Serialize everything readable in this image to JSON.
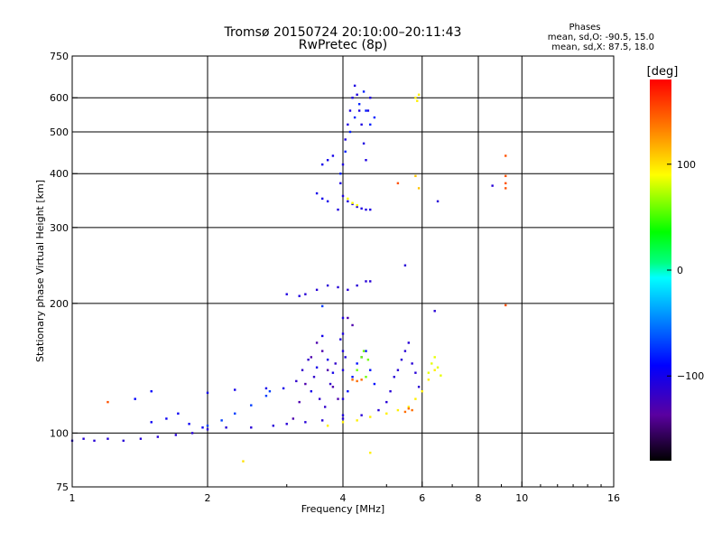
{
  "chart_data": {
    "type": "scatter",
    "title": "Tromsø 20150724 20:10:00–20:11:43",
    "subtitle": "RwPretec (8p)",
    "xlabel": "Frequency [MHz]",
    "ylabel": "Stationary phase Virtual Height [km]",
    "x_scale": "log2",
    "y_scale": "log",
    "xlim": [
      1,
      16
    ],
    "ylim": [
      75,
      750
    ],
    "xticks": [
      1,
      2,
      4,
      6,
      8,
      10,
      16
    ],
    "yticks": [
      75,
      100,
      200,
      300,
      400,
      500,
      600,
      750
    ],
    "x_grid": [
      2,
      4,
      6,
      8,
      10
    ],
    "y_grid": [
      100,
      200,
      300,
      400,
      500,
      600
    ],
    "grid": true,
    "phase_box": {
      "heading": "Phases",
      "line1": "mean, sd,O: -90.5, 15.0",
      "line2": "mean, sd,X:  87.5, 18.0"
    },
    "colorbar": {
      "label": "[deg]",
      "range": [
        -180,
        180
      ],
      "ticks": [
        100,
        0,
        -100
      ],
      "tick_labels": [
        "100",
        "0",
        "−100"
      ]
    },
    "series": [
      {
        "points": [
          [
            1.0,
            96
          ],
          [
            1.06,
            97
          ],
          [
            1.12,
            96
          ],
          [
            1.2,
            97
          ],
          [
            1.3,
            96
          ],
          [
            1.42,
            97
          ],
          [
            1.55,
            98
          ],
          [
            1.7,
            99
          ],
          [
            1.85,
            100
          ],
          [
            2.0,
            102
          ],
          [
            2.2,
            103
          ],
          [
            2.5,
            103
          ],
          [
            2.8,
            104
          ],
          [
            3.0,
            105
          ],
          [
            3.3,
            106
          ],
          [
            3.6,
            107
          ],
          [
            4.0,
            108
          ],
          [
            4.4,
            110
          ],
          [
            4.8,
            113
          ]
        ],
        "phase": -110
      },
      {
        "points": [
          [
            2.0,
            104
          ],
          [
            2.15,
            107
          ],
          [
            2.3,
            111
          ],
          [
            2.5,
            116
          ],
          [
            2.7,
            122
          ],
          [
            2.75,
            125
          ]
        ],
        "phase": -70
      },
      {
        "points": [
          [
            1.5,
            106
          ],
          [
            1.62,
            108
          ],
          [
            1.72,
            111
          ],
          [
            1.82,
            105
          ],
          [
            1.95,
            103
          ]
        ],
        "phase": -95
      },
      {
        "points": [
          [
            2.0,
            124
          ],
          [
            2.3,
            126
          ],
          [
            2.7,
            127
          ],
          [
            2.95,
            127
          ]
        ],
        "phase": -100
      },
      {
        "points": [
          [
            3.1,
            108
          ],
          [
            3.2,
            118
          ],
          [
            3.3,
            130
          ],
          [
            3.4,
            150
          ],
          [
            3.5,
            162
          ],
          [
            3.6,
            155
          ],
          [
            3.7,
            140
          ],
          [
            3.8,
            128
          ],
          [
            3.9,
            120
          ]
        ],
        "phase": -130
      },
      {
        "points": [
          [
            3.15,
            132
          ],
          [
            3.25,
            140
          ],
          [
            3.35,
            148
          ],
          [
            3.45,
            135
          ],
          [
            3.55,
            120
          ],
          [
            3.65,
            115
          ],
          [
            3.75,
            130
          ],
          [
            3.85,
            145
          ]
        ],
        "phase": -115
      },
      {
        "points": [
          [
            3.4,
            125
          ],
          [
            3.5,
            142
          ],
          [
            3.6,
            168
          ],
          [
            3.7,
            148
          ],
          [
            3.8,
            138
          ]
        ],
        "phase": -100
      },
      {
        "points": [
          [
            4.0,
            140
          ],
          [
            4.0,
            155
          ],
          [
            4.0,
            170
          ],
          [
            4.0,
            185
          ],
          [
            4.0,
            120
          ],
          [
            4.0,
            110
          ],
          [
            3.95,
            165
          ],
          [
            4.05,
            150
          ]
        ],
        "phase": -105
      },
      {
        "points": [
          [
            4.1,
            125
          ],
          [
            4.2,
            135
          ],
          [
            4.3,
            145
          ],
          [
            4.4,
            150
          ],
          [
            4.5,
            155
          ],
          [
            4.6,
            140
          ],
          [
            4.7,
            130
          ]
        ],
        "phase": -85
      },
      {
        "points": [
          [
            4.3,
            140
          ],
          [
            4.4,
            150
          ],
          [
            4.45,
            155
          ],
          [
            4.55,
            148
          ],
          [
            4.5,
            135
          ]
        ],
        "phase": 60
      },
      {
        "points": [
          [
            4.2,
            133
          ],
          [
            4.3,
            132
          ],
          [
            4.4,
            133
          ]
        ],
        "phase": 140
      },
      {
        "points": [
          [
            5.0,
            118
          ],
          [
            5.1,
            125
          ],
          [
            5.2,
            135
          ],
          [
            5.3,
            140
          ],
          [
            5.4,
            148
          ],
          [
            5.5,
            155
          ],
          [
            5.6,
            162
          ],
          [
            5.7,
            145
          ],
          [
            5.8,
            138
          ],
          [
            5.9,
            128
          ]
        ],
        "phase": -110
      },
      {
        "points": [
          [
            3.7,
            104
          ],
          [
            4.0,
            106
          ],
          [
            4.3,
            107
          ],
          [
            4.6,
            109
          ],
          [
            5.0,
            111
          ],
          [
            5.3,
            113
          ],
          [
            5.6,
            115
          ],
          [
            5.8,
            120
          ],
          [
            6.0,
            125
          ],
          [
            6.2,
            133
          ],
          [
            6.4,
            140
          ]
        ],
        "phase": 95
      },
      {
        "points": [
          [
            6.2,
            138
          ],
          [
            6.3,
            145
          ],
          [
            6.4,
            150
          ],
          [
            6.5,
            142
          ],
          [
            6.6,
            136
          ]
        ],
        "phase": 85
      },
      {
        "points": [
          [
            5.5,
            112
          ],
          [
            5.6,
            114
          ],
          [
            5.7,
            113
          ]
        ],
        "phase": 140
      },
      {
        "points": [
          [
            3.3,
            210
          ],
          [
            3.5,
            215
          ],
          [
            3.7,
            220
          ],
          [
            3.9,
            218
          ],
          [
            4.1,
            215
          ],
          [
            4.3,
            220
          ],
          [
            4.5,
            225
          ],
          [
            4.6,
            225
          ]
        ],
        "phase": -110
      },
      {
        "points": [
          [
            3.0,
            210
          ],
          [
            3.2,
            208
          ]
        ],
        "phase": -105
      },
      {
        "points": [
          [
            3.9,
            330
          ],
          [
            3.95,
            380
          ],
          [
            4.0,
            420
          ],
          [
            4.05,
            480
          ],
          [
            4.1,
            520
          ],
          [
            4.15,
            560
          ],
          [
            4.2,
            600
          ],
          [
            4.25,
            640
          ],
          [
            4.3,
            610
          ],
          [
            4.35,
            560
          ],
          [
            4.4,
            520
          ],
          [
            4.45,
            470
          ],
          [
            4.5,
            430
          ],
          [
            4.55,
            560
          ],
          [
            4.6,
            600
          ]
        ],
        "phase": -105
      },
      {
        "points": [
          [
            3.95,
            400
          ],
          [
            4.05,
            450
          ],
          [
            4.15,
            500
          ],
          [
            4.25,
            540
          ],
          [
            4.35,
            580
          ],
          [
            4.45,
            620
          ],
          [
            4.5,
            560
          ],
          [
            4.6,
            520
          ],
          [
            4.7,
            540
          ]
        ],
        "phase": -80
      },
      {
        "points": [
          [
            4.0,
            355
          ],
          [
            4.1,
            345
          ],
          [
            4.2,
            340
          ],
          [
            4.3,
            335
          ],
          [
            4.4,
            332
          ],
          [
            4.5,
            330
          ],
          [
            4.6,
            330
          ]
        ],
        "phase": -105
      },
      {
        "points": [
          [
            3.5,
            360
          ],
          [
            3.6,
            350
          ],
          [
            3.7,
            345
          ]
        ],
        "phase": -100
      },
      {
        "points": [
          [
            4.1,
            350
          ],
          [
            4.2,
            342
          ],
          [
            4.3,
            338
          ]
        ],
        "phase": 90
      },
      {
        "points": [
          [
            3.6,
            420
          ],
          [
            3.7,
            430
          ],
          [
            3.8,
            440
          ]
        ],
        "phase": -100
      },
      {
        "points": [
          [
            5.8,
            600
          ],
          [
            5.85,
            590
          ],
          [
            5.9,
            610
          ]
        ],
        "phase": 95
      },
      {
        "points": [
          [
            5.8,
            395
          ],
          [
            5.9,
            370
          ]
        ],
        "phase": 110
      },
      {
        "points": [
          [
            5.3,
            380
          ]
        ],
        "phase": 150
      },
      {
        "points": [
          [
            6.5,
            345
          ]
        ],
        "phase": -110
      },
      {
        "points": [
          [
            8.6,
            375
          ]
        ],
        "phase": -110
      },
      {
        "points": [
          [
            9.2,
            440
          ],
          [
            9.2,
            395
          ],
          [
            9.2,
            380
          ],
          [
            9.2,
            370
          ]
        ],
        "phase": 150
      },
      {
        "points": [
          [
            9.2,
            198
          ]
        ],
        "phase": 150
      },
      {
        "points": [
          [
            5.5,
            245
          ]
        ],
        "phase": -110
      },
      {
        "points": [
          [
            6.4,
            192
          ]
        ],
        "phase": -110
      },
      {
        "points": [
          [
            1.2,
            118
          ]
        ],
        "phase": 150
      },
      {
        "points": [
          [
            1.38,
            120
          ],
          [
            1.5,
            125
          ]
        ],
        "phase": -90
      },
      {
        "points": [
          [
            2.4,
            86
          ]
        ],
        "phase": 100
      },
      {
        "points": [
          [
            4.6,
            90
          ]
        ],
        "phase": 95
      },
      {
        "points": [
          [
            3.6,
            197
          ]
        ],
        "phase": -70
      },
      {
        "points": [
          [
            4.1,
            185
          ],
          [
            4.2,
            178
          ]
        ],
        "phase": -130
      }
    ]
  }
}
